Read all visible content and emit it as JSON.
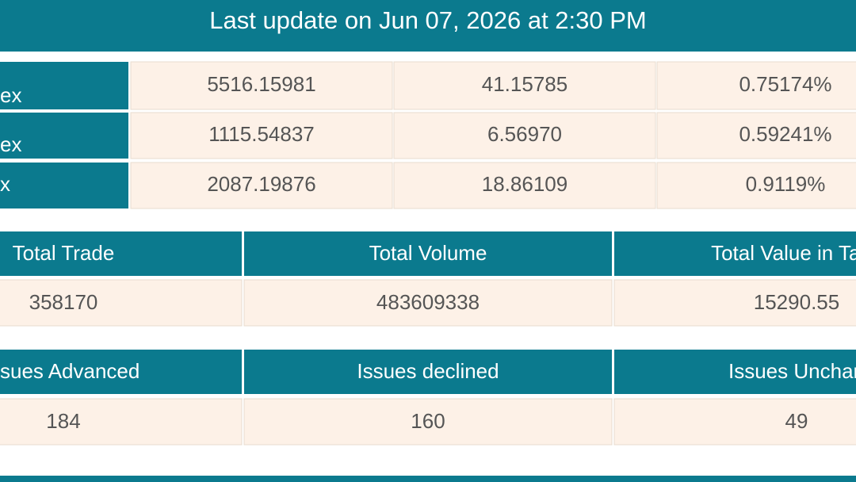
{
  "header": {
    "title": "Last update on Jun 07, 2026 at 2:30 PM"
  },
  "index_table": {
    "rows": [
      [
        "ex",
        "5516.15981",
        "41.15785",
        "0.75174%"
      ],
      [
        "ex",
        "1115.54837",
        "6.56970",
        "0.59241%"
      ],
      [
        "x",
        "2087.19876",
        "18.86109",
        "0.9119%"
      ]
    ]
  },
  "trade_table": {
    "headers": [
      "Total Trade",
      "Total Volume",
      "Total Value in Taka"
    ],
    "rows": [
      [
        "358170",
        "483609338",
        "15290.55"
      ]
    ]
  },
  "issues_table": {
    "headers": [
      "sues Advanced",
      "Issues declined",
      "Issues Unchan"
    ],
    "rows": [
      [
        "184",
        "160",
        "49"
      ]
    ]
  }
}
